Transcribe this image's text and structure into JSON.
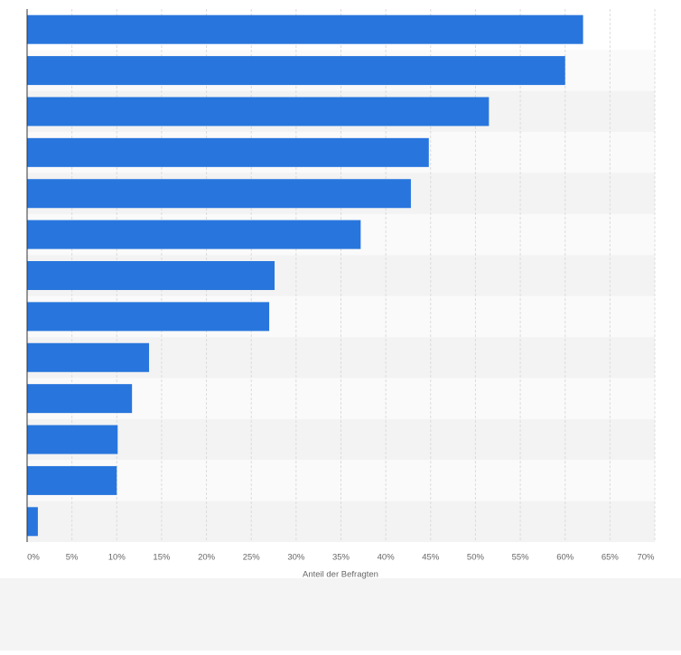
{
  "chart_data": {
    "type": "bar",
    "orientation": "horizontal",
    "x_label": "Anteil der Befragten",
    "categories": [
      null,
      null,
      null,
      null,
      null,
      null,
      null,
      null,
      null,
      null,
      null,
      null,
      null
    ],
    "values": [
      62,
      60,
      51.5,
      44.8,
      42.8,
      37.2,
      27.6,
      27,
      13.6,
      11.7,
      10.1,
      10,
      1.2
    ],
    "color": "#2876dd",
    "xlim": [
      0,
      70
    ],
    "xticks": [
      {
        "value": 0,
        "label": "0%"
      },
      {
        "value": 5,
        "label": "5%"
      },
      {
        "value": 10,
        "label": "10%"
      },
      {
        "value": 15,
        "label": "15%"
      },
      {
        "value": 20,
        "label": "20%"
      },
      {
        "value": 25,
        "label": "25%"
      },
      {
        "value": 30,
        "label": "30%"
      },
      {
        "value": 35,
        "label": "35%"
      },
      {
        "value": 40,
        "label": "40%"
      },
      {
        "value": 45,
        "label": "45%"
      },
      {
        "value": 50,
        "label": "50%"
      },
      {
        "value": 55,
        "label": "55%"
      },
      {
        "value": 60,
        "label": "60%"
      },
      {
        "value": 65,
        "label": "65%"
      },
      {
        "value": 70,
        "label": "70%"
      }
    ],
    "grid": true
  }
}
